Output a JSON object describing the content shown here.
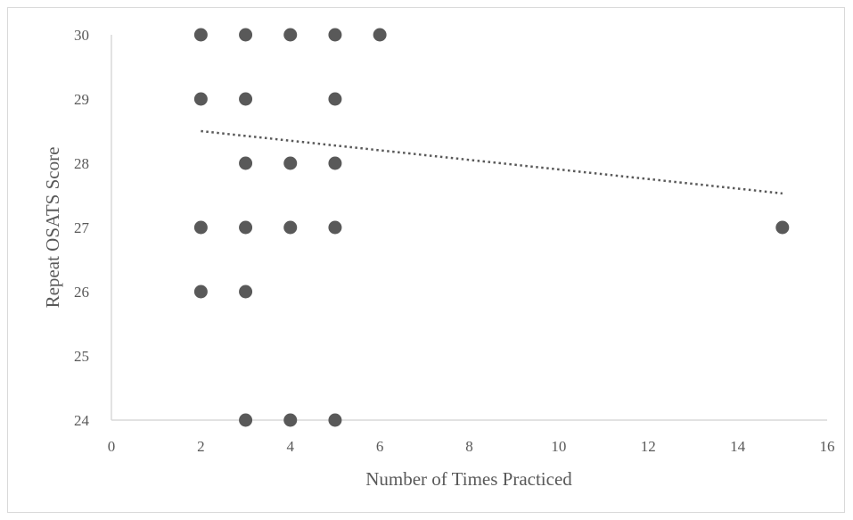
{
  "chart_data": {
    "type": "scatter",
    "xlabel": "Number of Times Practiced",
    "ylabel": "Repeat OSATS Score",
    "xlim": [
      0,
      16
    ],
    "ylim": [
      24,
      30
    ],
    "xticks": [
      0,
      2,
      4,
      6,
      8,
      10,
      12,
      14,
      16
    ],
    "yticks": [
      24,
      25,
      26,
      27,
      28,
      29,
      30
    ],
    "grid": false,
    "legend": "none",
    "marker_color": "#595959",
    "trendline_color": "#595959",
    "points": [
      {
        "x": 2,
        "y": 30
      },
      {
        "x": 3,
        "y": 30
      },
      {
        "x": 4,
        "y": 30
      },
      {
        "x": 5,
        "y": 30
      },
      {
        "x": 6,
        "y": 30
      },
      {
        "x": 2,
        "y": 29
      },
      {
        "x": 3,
        "y": 29
      },
      {
        "x": 5,
        "y": 29
      },
      {
        "x": 3,
        "y": 28
      },
      {
        "x": 4,
        "y": 28
      },
      {
        "x": 5,
        "y": 28
      },
      {
        "x": 2,
        "y": 27
      },
      {
        "x": 3,
        "y": 27
      },
      {
        "x": 4,
        "y": 27
      },
      {
        "x": 5,
        "y": 27
      },
      {
        "x": 15,
        "y": 27
      },
      {
        "x": 2,
        "y": 26
      },
      {
        "x": 3,
        "y": 26
      },
      {
        "x": 3,
        "y": 24
      },
      {
        "x": 4,
        "y": 24
      },
      {
        "x": 5,
        "y": 24
      }
    ],
    "trendline": {
      "type": "linear",
      "style": "dotted",
      "start": {
        "x": 2,
        "y": 28.5
      },
      "end": {
        "x": 15,
        "y": 27.53
      }
    }
  }
}
